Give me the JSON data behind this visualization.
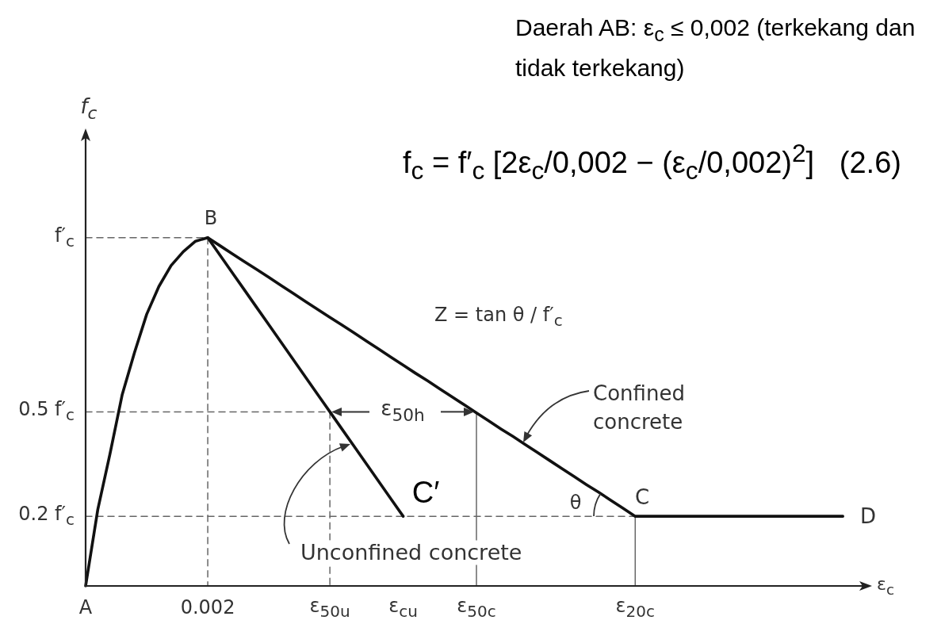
{
  "chart_data": {
    "type": "line",
    "title": "Daerah AB: ε$_{c}$ ≤ 0,002 (terkekang dan tidak terkekang)",
    "xlabel": "ε$_{c}$",
    "ylabel": "f$_{c}$",
    "categories": [
      "A",
      null,
      null,
      null,
      null,
      null,
      null,
      null,
      null,
      null,
      "0.002",
      null,
      null,
      null,
      null,
      null,
      null,
      null,
      null,
      null,
      "ε$_{50u}$",
      null,
      null,
      null,
      null,
      null,
      "ε$_{cu}$",
      null,
      null,
      null,
      null,
      null,
      "ε$_{50c}$",
      null,
      null,
      null,
      null,
      null,
      null,
      null,
      null,
      null,
      null,
      null,
      null,
      "ε$_{20c}$",
      null,
      null,
      null,
      null,
      null,
      null,
      null,
      null,
      null,
      null,
      null,
      null,
      null,
      null,
      null,
      null,
      null,
      null,
      null
    ],
    "ylim": [
      0,
      1.3
    ],
    "yticks": [
      {
        "value": 0.2,
        "label": "0.2 f′$_{c}$"
      },
      {
        "value": 0.5,
        "label": "0.5 f′$_{c}$"
      },
      {
        "value": 1,
        "label": "f′$_{c}$"
      }
    ],
    "grid": false,
    "marker": "none",
    "series": [
      {
        "color": "#111111",
        "values": [
          0,
          0.22,
          0.38,
          0.55,
          0.67,
          0.78,
          0.86,
          0.92,
          0.96,
          0.99,
          1,
          0.977,
          0.954,
          0.931,
          0.909,
          0.886,
          0.863,
          0.84,
          0.817,
          0.794,
          0.771,
          0.749,
          0.726,
          0.703,
          0.68,
          0.657,
          0.634,
          0.611,
          0.589,
          0.566,
          0.543,
          0.52,
          0.497,
          0.474,
          0.451,
          0.429,
          0.406,
          0.383,
          0.36,
          0.337,
          0.314,
          0.291,
          0.269,
          0.246,
          0.223,
          0.2,
          0.2,
          0.2,
          0.2,
          0.2,
          0.2,
          0.2,
          0.2,
          0.2,
          0.2,
          0.2,
          0.2,
          0.2,
          0.2,
          0.2,
          0.2,
          0.2,
          0.2,
          null,
          null
        ]
      },
      {
        "color": "#111111",
        "values": [
          null,
          null,
          null,
          null,
          null,
          null,
          null,
          null,
          null,
          null,
          1,
          0.95,
          0.9,
          0.85,
          0.8,
          0.75,
          0.7,
          0.65,
          0.6,
          0.55,
          0.5,
          0.45,
          0.4,
          0.35,
          0.3,
          0.25,
          0.2,
          null,
          null,
          null,
          null,
          null,
          null,
          null,
          null,
          null,
          null,
          null,
          null,
          null,
          null,
          null,
          null,
          null,
          null,
          null,
          null,
          null,
          null,
          null,
          null,
          null,
          null,
          null,
          null,
          null,
          null,
          null,
          null,
          null,
          null,
          null,
          null,
          null,
          null
        ]
      },
      {
        "type": "step",
        "color": "#666666",
        "line_style": "dashed",
        "values": [
          1,
          1,
          1,
          1,
          1,
          1,
          1,
          1,
          1,
          1,
          1,
          0,
          null,
          null,
          null,
          null,
          null,
          null,
          null,
          null,
          null,
          null,
          null,
          null,
          null,
          null,
          null,
          null,
          null,
          null,
          null,
          null,
          null,
          null,
          null,
          null,
          null,
          null,
          null,
          null,
          null,
          null,
          null,
          null,
          null,
          null,
          null,
          null,
          null,
          null,
          null,
          null,
          null,
          null,
          null,
          null,
          null,
          null,
          null,
          null,
          null,
          null,
          null,
          null,
          null
        ]
      },
      {
        "type": "step",
        "color": "#666666",
        "line_style": "dashed",
        "values": [
          0.5,
          0.5,
          0.5,
          0.5,
          0.5,
          0.5,
          0.5,
          0.5,
          0.5,
          0.5,
          0.5,
          0.5,
          0.5,
          0.5,
          0.5,
          0.5,
          0.5,
          0.5,
          0.5,
          0.5,
          0.5,
          0,
          null,
          null,
          null,
          null,
          null,
          null,
          null,
          null,
          null,
          null,
          null,
          null,
          null,
          null,
          null,
          null,
          null,
          null,
          null,
          null,
          null,
          null,
          null,
          null,
          null,
          null,
          null,
          null,
          null,
          null,
          null,
          null,
          null,
          null,
          null,
          null,
          null,
          null,
          null,
          null,
          null,
          null,
          null
        ]
      },
      {
        "color": "#666666",
        "line_style": "dashed",
        "values": [
          0.2,
          0.2,
          0.2,
          0.2,
          0.2,
          0.2,
          0.2,
          0.2,
          0.2,
          0.2,
          0.2,
          0.2,
          0.2,
          0.2,
          0.2,
          0.2,
          0.2,
          0.2,
          0.2,
          0.2,
          0.2,
          0.2,
          0.2,
          0.2,
          0.2,
          0.2,
          0.2,
          0.2,
          0.2,
          0.2,
          0.2,
          0.2,
          0.2,
          0.2,
          0.2,
          0.2,
          0.2,
          0.2,
          0.2,
          0.2,
          0.2,
          0.2,
          0.2,
          0.2,
          0.2,
          0.2,
          null,
          null,
          null,
          null,
          null,
          null,
          null,
          null,
          null,
          null,
          null,
          null,
          null,
          null,
          null,
          null,
          null,
          null,
          null
        ]
      },
      {
        "type": "step",
        "color": "#666666",
        "line_style": "solid",
        "values": [
          null,
          null,
          null,
          null,
          null,
          null,
          null,
          null,
          null,
          null,
          null,
          null,
          null,
          null,
          null,
          null,
          null,
          null,
          null,
          null,
          null,
          null,
          null,
          null,
          null,
          null,
          null,
          null,
          null,
          null,
          null,
          null,
          0.5,
          0,
          null,
          null,
          null,
          null,
          null,
          null,
          null,
          null,
          null,
          null,
          null,
          null,
          null,
          null,
          null,
          null,
          null,
          null,
          null,
          null,
          null,
          null,
          null,
          null,
          null,
          null,
          null,
          null,
          null,
          null,
          null
        ]
      },
      {
        "type": "step",
        "color": "#666666",
        "line_style": "solid",
        "values": [
          null,
          null,
          null,
          null,
          null,
          null,
          null,
          null,
          null,
          null,
          null,
          null,
          null,
          null,
          null,
          null,
          null,
          null,
          null,
          null,
          null,
          null,
          null,
          null,
          null,
          null,
          null,
          null,
          null,
          null,
          null,
          null,
          null,
          null,
          null,
          null,
          null,
          null,
          null,
          null,
          null,
          null,
          null,
          null,
          null,
          0.2,
          0,
          null,
          null,
          null,
          null,
          null,
          null,
          null,
          null,
          null,
          null,
          null,
          null,
          null,
          null,
          null,
          null,
          null,
          null
        ]
      }
    ],
    "annotations": [
      "B",
      "C′",
      "C",
      "D",
      "θ",
      {
        "text": "ε$_{50h}$",
        "x": "ε$_{50c}$",
        "y": 0.5
      },
      "Confined concrete",
      "Unconfined concrete",
      "Z = tan θ / f′$_{c}$",
      "f$_{c}$ = f′$_{c}$ [2ε$_{c}$/0,002 − (ε$_{c}$/0,002)$^{2}$]   (2.6)"
    ]
  }
}
